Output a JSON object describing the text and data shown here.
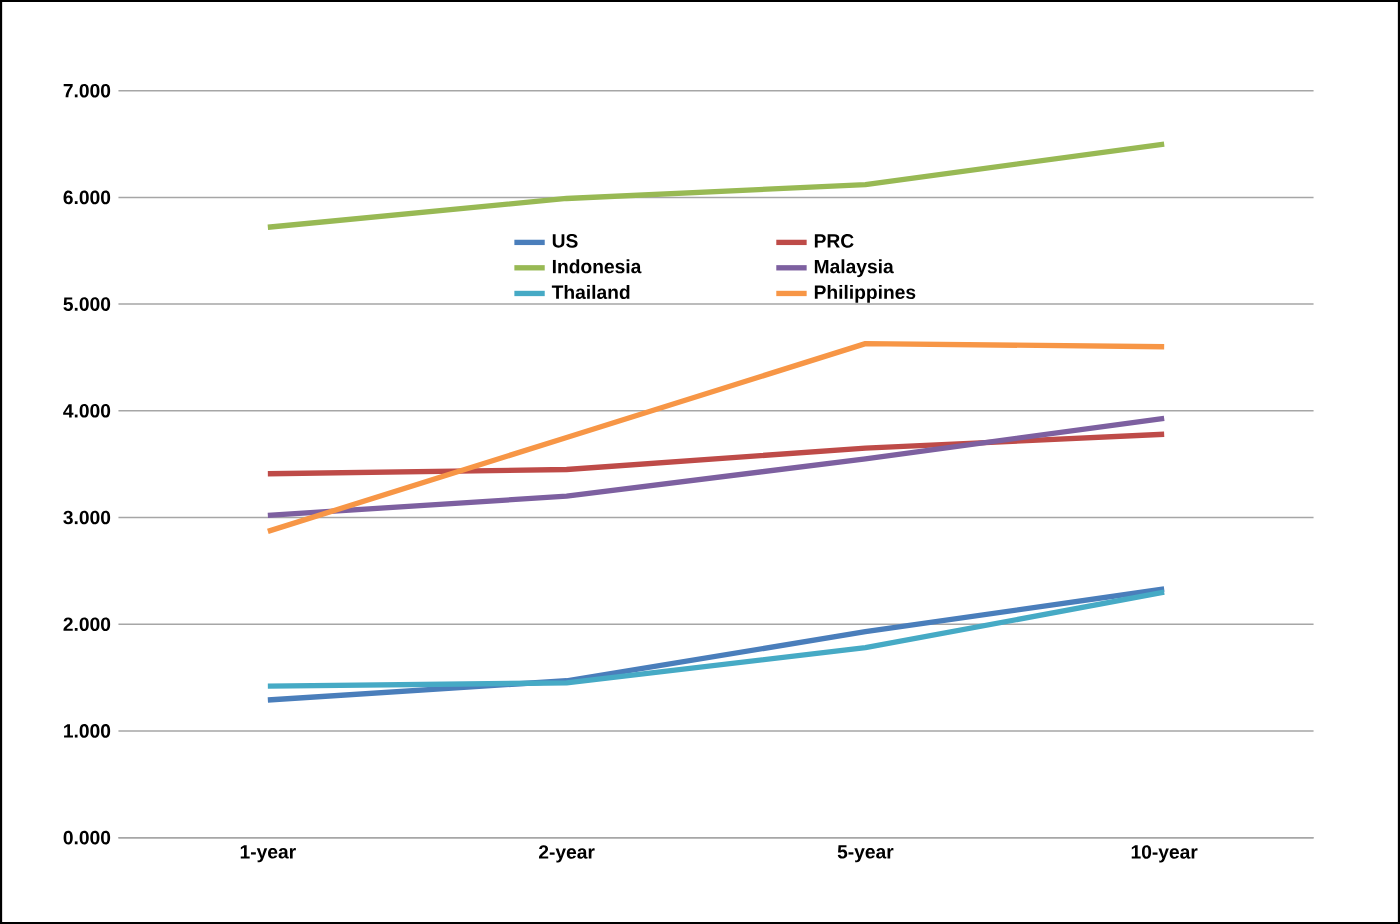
{
  "chart_data": {
    "type": "line",
    "categories": [
      "1-year",
      "2-year",
      "5-year",
      "10-year"
    ],
    "series": [
      {
        "name": "US",
        "color": "#4a7ebb",
        "values": [
          1.29,
          1.47,
          1.93,
          2.33
        ]
      },
      {
        "name": "PRC",
        "color": "#be4b48",
        "values": [
          3.41,
          3.45,
          3.65,
          3.78
        ]
      },
      {
        "name": "Indonesia",
        "color": "#98b954",
        "values": [
          5.72,
          5.99,
          6.12,
          6.5
        ]
      },
      {
        "name": "Malaysia",
        "color": "#7d60a0",
        "values": [
          3.02,
          3.2,
          3.55,
          3.93
        ]
      },
      {
        "name": "Thailand",
        "color": "#46aac5",
        "values": [
          1.42,
          1.45,
          1.78,
          2.3
        ]
      },
      {
        "name": "Philippines",
        "color": "#f79646",
        "values": [
          2.87,
          3.75,
          4.63,
          4.6
        ]
      }
    ],
    "ylim": [
      0,
      7
    ],
    "yticks": [
      {
        "value": 0,
        "label": "0.000"
      },
      {
        "value": 1,
        "label": "1.000"
      },
      {
        "value": 2,
        "label": "2.000"
      },
      {
        "value": 3,
        "label": "3.000"
      },
      {
        "value": 4,
        "label": "4.000"
      },
      {
        "value": 5,
        "label": "5.000"
      },
      {
        "value": 6,
        "label": "6.000"
      },
      {
        "value": 7,
        "label": "7.000"
      }
    ],
    "grid": "y",
    "legend": "top",
    "marker": "none",
    "line_style": "solid"
  }
}
